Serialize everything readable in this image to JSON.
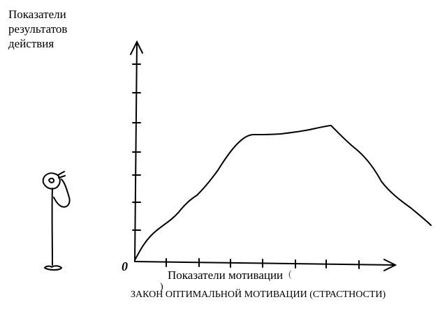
{
  "y_axis_title": "Показатели результатов действия",
  "x_axis_title": "Показатели мотивации",
  "origin_label": "0",
  "caption": "ЗАКОН ОПТИМАЛЬНОЙ МОТИВАЦИИ (СТРАСТНОСТИ)",
  "caption_mark": ")",
  "stray_mark": "(",
  "colors": {
    "ink": "#000000",
    "background": "#ffffff"
  },
  "icons": {
    "figure": "thinking-stick-figure"
  }
}
